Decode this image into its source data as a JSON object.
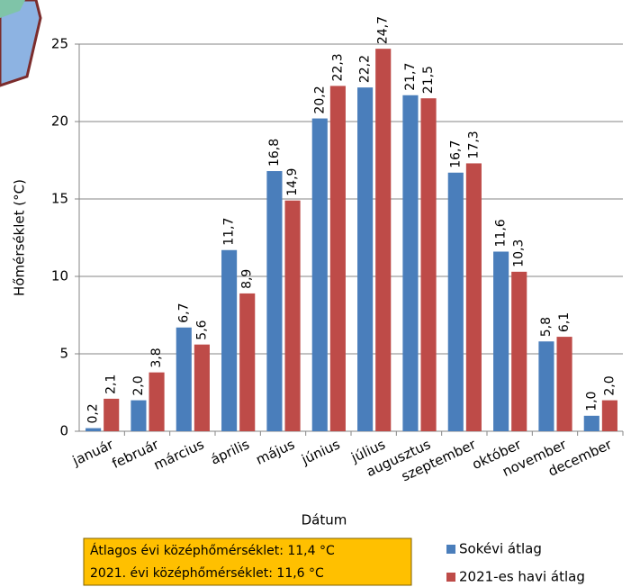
{
  "chart_data": {
    "type": "bar",
    "y_label": "Hőmérséklet (°C)",
    "x_label": "Dátum",
    "categories": [
      "január",
      "február",
      "március",
      "április",
      "május",
      "június",
      "július",
      "augusztus",
      "szeptember",
      "október",
      "november",
      "december"
    ],
    "series": [
      {
        "name": "Sokévi átlag",
        "color": "#4a7ebb",
        "values": [
          0.2,
          2.0,
          6.7,
          11.7,
          16.8,
          20.2,
          22.2,
          21.7,
          16.7,
          11.6,
          5.8,
          1.0
        ],
        "value_labels": [
          "0,2",
          "2,0",
          "6,7",
          "11,7",
          "16,8",
          "20,2",
          "22,2",
          "21,7",
          "16,7",
          "11,6",
          "5,8",
          "1,0"
        ]
      },
      {
        "name": "2021-es havi átlag",
        "color": "#be4b48",
        "values": [
          2.1,
          3.8,
          5.6,
          8.9,
          14.9,
          22.3,
          24.7,
          21.5,
          17.3,
          10.3,
          6.1,
          2.0
        ],
        "value_labels": [
          "2,1",
          "3,8",
          "5,6",
          "8,9",
          "14,9",
          "22,3",
          "24,7",
          "21,5",
          "17,3",
          "10,3",
          "6,1",
          "2,0"
        ]
      }
    ],
    "ylim": [
      0,
      25
    ],
    "yticks": [
      0,
      5,
      10,
      15,
      20,
      25
    ],
    "grid": true,
    "legend": "bottom-right",
    "annotations": [
      "Átlagos évi középhőmérséklet: 11,4 °C",
      "2021. évi középhőmérséklet: 11,6 °C"
    ]
  }
}
